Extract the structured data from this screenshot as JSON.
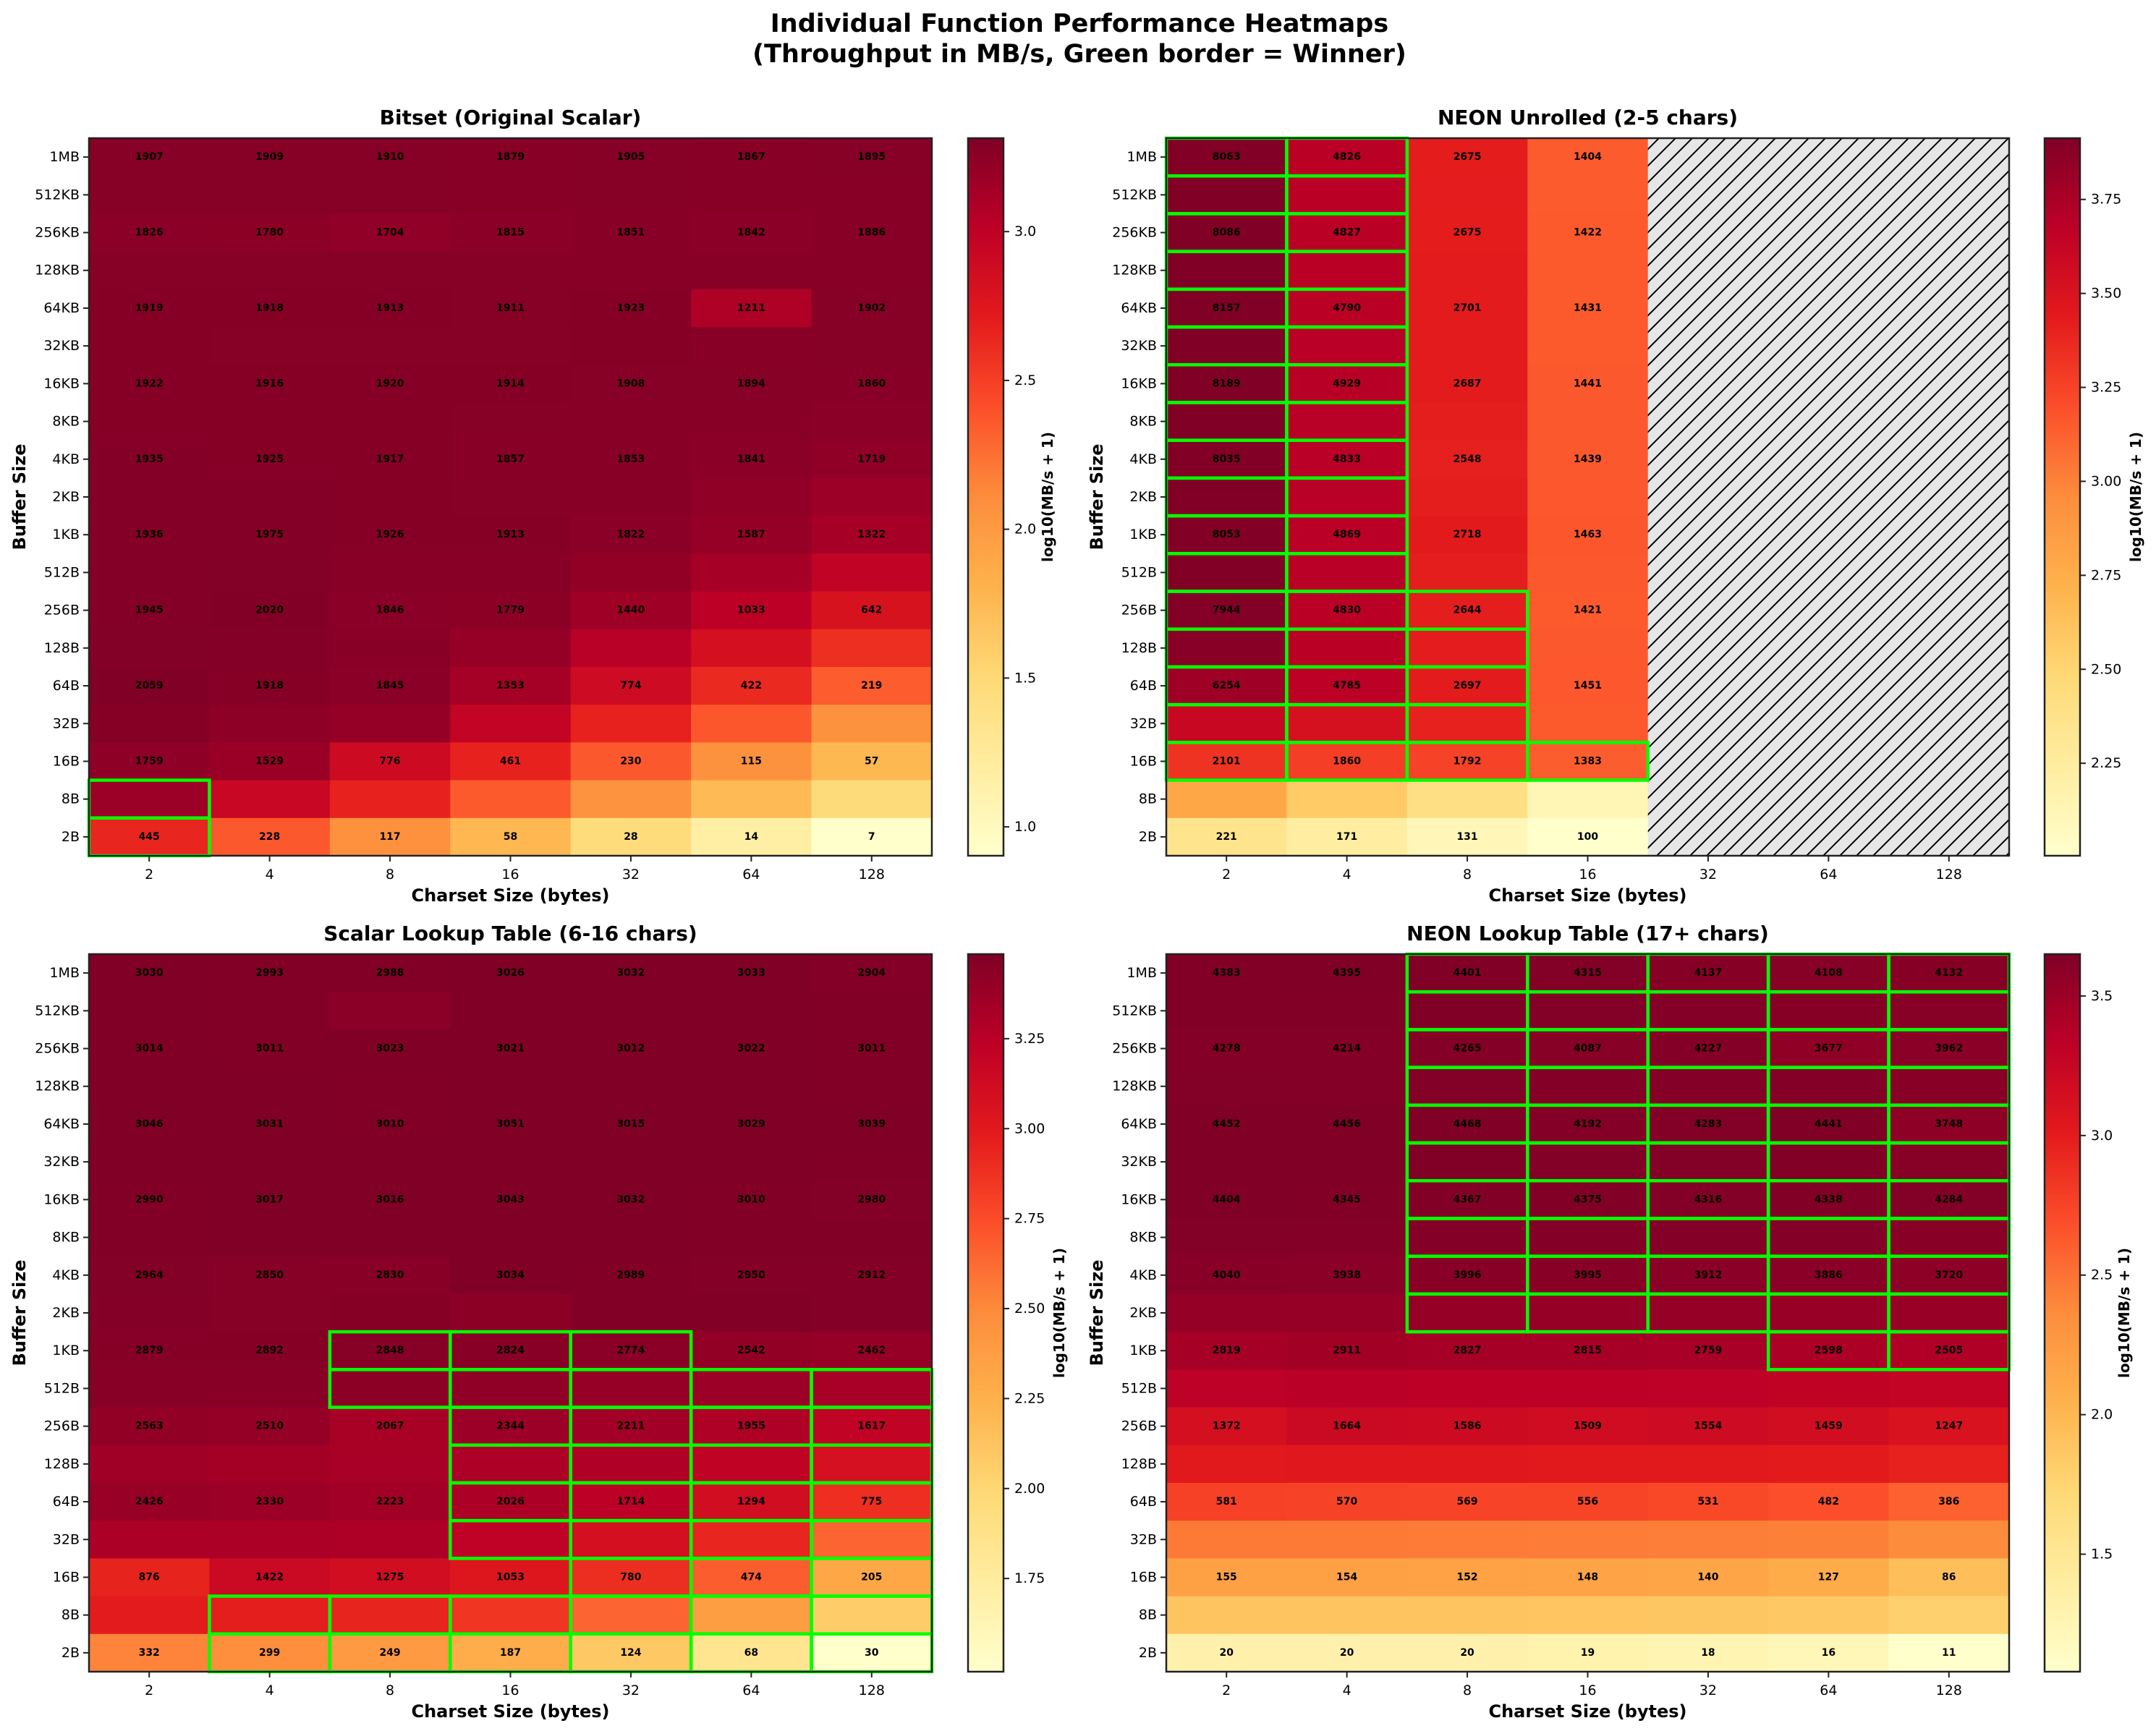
{
  "figure": {
    "title_line1": "Individual Function Performance Heatmaps",
    "title_line2": "(Throughput in MB/s, Green border = Winner)"
  },
  "colormap": {
    "name": "YlOrRd",
    "stops": [
      "#ffffcc",
      "#ffeda0",
      "#fed976",
      "#feb24c",
      "#fd8d3c",
      "#fc4e2a",
      "#e31a1c",
      "#bd0026",
      "#800026"
    ]
  },
  "styles": {
    "winner_border_color": "#00ff00",
    "missing_cell_fill": "#e6e6e6",
    "missing_hatch_color": "#000000"
  },
  "chart_data": [
    {
      "type": "heatmap",
      "title": "Bitset (Original Scalar)",
      "xlabel": "Charset Size (bytes)",
      "ylabel": "Buffer Size",
      "x_categories": [
        "2",
        "4",
        "8",
        "16",
        "32",
        "64",
        "128"
      ],
      "y_categories": [
        "1MB",
        "512KB",
        "256KB",
        "128KB",
        "64KB",
        "32KB",
        "16KB",
        "8KB",
        "4KB",
        "2KB",
        "1KB",
        "512B",
        "256B",
        "128B",
        "64B",
        "32B",
        "16B",
        "8B",
        "2B"
      ],
      "value_units": "MB/s",
      "colorbar": {
        "label": "log10(MB/s + 1)",
        "range": [
          0.903,
          3.314
        ],
        "ticks": [
          1.0,
          1.5,
          2.0,
          2.5,
          3.0
        ],
        "tick_labels": [
          "1.0",
          "1.5",
          "2.0",
          "2.5",
          "3.0"
        ]
      },
      "annotated_rows": [
        0,
        2,
        4,
        6,
        8,
        10,
        12,
        14,
        16,
        18
      ],
      "values": [
        [
          1907,
          1909,
          1910,
          1879,
          1905,
          1867,
          1895
        ],
        [
          1905,
          1910,
          1908,
          1890,
          1900,
          1880,
          1890
        ],
        [
          1826,
          1780,
          1704,
          1815,
          1851,
          1842,
          1886
        ],
        [
          1900,
          1905,
          1895,
          1900,
          1890,
          1870,
          1880
        ],
        [
          1919,
          1918,
          1913,
          1911,
          1923,
          1211,
          1902
        ],
        [
          1915,
          1910,
          1912,
          1905,
          1915,
          1890,
          1895
        ],
        [
          1922,
          1916,
          1920,
          1914,
          1908,
          1894,
          1860
        ],
        [
          1925,
          1920,
          1918,
          1900,
          1890,
          1880,
          1820
        ],
        [
          1935,
          1925,
          1917,
          1857,
          1853,
          1841,
          1719
        ],
        [
          1940,
          1950,
          1925,
          1900,
          1880,
          1720,
          1480
        ],
        [
          1936,
          1975,
          1926,
          1913,
          1822,
          1587,
          1322
        ],
        [
          1950,
          2000,
          1890,
          1850,
          1650,
          1320,
          960
        ],
        [
          1945,
          2020,
          1846,
          1779,
          1440,
          1033,
          642
        ],
        [
          2000,
          1960,
          1850,
          1580,
          1080,
          690,
          390
        ],
        [
          2059,
          1918,
          1845,
          1353,
          774,
          422,
          219
        ],
        [
          1930,
          1760,
          1620,
          920,
          470,
          235,
          115
        ],
        [
          1759,
          1529,
          776,
          461,
          230,
          115,
          57
        ],
        [
          1500,
          860,
          460,
          225,
          114,
          55,
          29
        ],
        [
          445,
          228,
          117,
          58,
          28,
          14,
          7
        ]
      ],
      "winner_mask": [
        "0000000",
        "0000000",
        "0000000",
        "0000000",
        "0000000",
        "0000000",
        "0000000",
        "0000000",
        "0000000",
        "0000000",
        "0000000",
        "0000000",
        "0000000",
        "0000000",
        "0000000",
        "0000000",
        "0000000",
        "1000000",
        "1000000"
      ]
    },
    {
      "type": "heatmap",
      "title": "NEON Unrolled (2-5 chars)",
      "xlabel": "Charset Size (bytes)",
      "ylabel": "Buffer Size",
      "x_categories": [
        "2",
        "4",
        "8",
        "16",
        "32",
        "64",
        "128"
      ],
      "y_categories": [
        "1MB",
        "512KB",
        "256KB",
        "128KB",
        "64KB",
        "32KB",
        "16KB",
        "8KB",
        "4KB",
        "2KB",
        "1KB",
        "512B",
        "256B",
        "128B",
        "64B",
        "32B",
        "16B",
        "8B",
        "2B"
      ],
      "value_units": "MB/s",
      "missing_cells_style": "hatched",
      "colorbar": {
        "label": "log10(MB/s + 1)",
        "range": [
          2.004,
          3.913
        ],
        "ticks": [
          2.25,
          2.5,
          2.75,
          3.0,
          3.25,
          3.5,
          3.75
        ],
        "tick_labels": [
          "2.25",
          "2.50",
          "2.75",
          "3.00",
          "3.25",
          "3.50",
          "3.75"
        ]
      },
      "annotated_rows": [
        0,
        2,
        4,
        6,
        8,
        10,
        12,
        14,
        16,
        18
      ],
      "values": [
        [
          8063,
          4826,
          2675,
          1404,
          null,
          null,
          null
        ],
        [
          8100,
          4820,
          2660,
          1410,
          null,
          null,
          null
        ],
        [
          8086,
          4827,
          2675,
          1422,
          null,
          null,
          null
        ],
        [
          8120,
          4810,
          2690,
          1425,
          null,
          null,
          null
        ],
        [
          8157,
          4790,
          2701,
          1431,
          null,
          null,
          null
        ],
        [
          8170,
          4860,
          2695,
          1435,
          null,
          null,
          null
        ],
        [
          8189,
          4929,
          2687,
          1441,
          null,
          null,
          null
        ],
        [
          8110,
          4880,
          2650,
          1440,
          null,
          null,
          null
        ],
        [
          8035,
          4833,
          2548,
          1439,
          null,
          null,
          null
        ],
        [
          8050,
          4850,
          2640,
          1450,
          null,
          null,
          null
        ],
        [
          8053,
          4869,
          2718,
          1463,
          null,
          null,
          null
        ],
        [
          8010,
          4840,
          2640,
          1440,
          null,
          null,
          null
        ],
        [
          7944,
          4830,
          2644,
          1421,
          null,
          null,
          null
        ],
        [
          7600,
          4810,
          2670,
          1436,
          null,
          null,
          null
        ],
        [
          6254,
          4785,
          2697,
          1451,
          null,
          null,
          null
        ],
        [
          4000,
          3300,
          2500,
          1430,
          null,
          null,
          null
        ],
        [
          2101,
          1860,
          1792,
          1383,
          null,
          null,
          null
        ],
        [
          620,
          370,
          256,
          136,
          null,
          null,
          null
        ],
        [
          221,
          171,
          131,
          100,
          null,
          null,
          null
        ]
      ],
      "winner_mask": [
        "1100000",
        "1100000",
        "1100000",
        "1100000",
        "1100000",
        "1100000",
        "1100000",
        "1100000",
        "1100000",
        "1100000",
        "1100000",
        "1100000",
        "1110000",
        "1110000",
        "1110000",
        "1110000",
        "1111000",
        "0000000",
        "0000000"
      ]
    },
    {
      "type": "heatmap",
      "title": "Scalar Lookup Table (6-16 chars)",
      "xlabel": "Charset Size (bytes)",
      "ylabel": "Buffer Size",
      "x_categories": [
        "2",
        "4",
        "8",
        "16",
        "32",
        "64",
        "128"
      ],
      "y_categories": [
        "1MB",
        "512KB",
        "256KB",
        "128KB",
        "64KB",
        "32KB",
        "16KB",
        "8KB",
        "4KB",
        "2KB",
        "1KB",
        "512B",
        "256B",
        "128B",
        "64B",
        "32B",
        "16B",
        "8B",
        "2B"
      ],
      "value_units": "MB/s",
      "colorbar": {
        "label": "log10(MB/s + 1)",
        "range": [
          1.491,
          3.485
        ],
        "ticks": [
          1.75,
          2.0,
          2.25,
          2.5,
          2.75,
          3.0,
          3.25
        ],
        "tick_labels": [
          "1.75",
          "2.00",
          "2.25",
          "2.50",
          "2.75",
          "3.00",
          "3.25"
        ]
      },
      "annotated_rows": [
        0,
        2,
        4,
        6,
        8,
        10,
        12,
        14,
        16,
        18
      ],
      "values": [
        [
          3030,
          2993,
          2988,
          3026,
          3032,
          3033,
          2904
        ],
        [
          3020,
          3010,
          2750,
          3030,
          3025,
          3015,
          2990
        ],
        [
          3014,
          3011,
          3023,
          3021,
          3012,
          3022,
          3011
        ],
        [
          3020,
          3015,
          3010,
          3030,
          3020,
          3025,
          3010
        ],
        [
          3046,
          3031,
          3010,
          3051,
          3015,
          3029,
          3039
        ],
        [
          3030,
          3025,
          3020,
          3040,
          3030,
          3020,
          3010
        ],
        [
          2990,
          3017,
          3016,
          3043,
          3032,
          3010,
          2980
        ],
        [
          3010,
          3020,
          3015,
          3030,
          3020,
          3010,
          2990
        ],
        [
          2964,
          2850,
          2830,
          3034,
          2989,
          2950,
          2912
        ],
        [
          2900,
          2850,
          2880,
          2700,
          3000,
          2990,
          2950
        ],
        [
          2879,
          2892,
          2848,
          2824,
          2774,
          2542,
          2462
        ],
        [
          2820,
          2800,
          2720,
          2620,
          2480,
          2350,
          2100
        ],
        [
          2563,
          2510,
          2067,
          2344,
          2211,
          1955,
          1617
        ],
        [
          2250,
          2170,
          2090,
          1980,
          1930,
          1650,
          1200
        ],
        [
          2426,
          2330,
          2223,
          2026,
          1714,
          1294,
          775
        ],
        [
          2000,
          2020,
          1980,
          1660,
          1230,
          860,
          440
        ],
        [
          876,
          1422,
          1275,
          1053,
          780,
          474,
          205
        ],
        [
          960,
          940,
          870,
          720,
          440,
          235,
          117
        ],
        [
          332,
          299,
          249,
          187,
          124,
          68,
          30
        ]
      ],
      "winner_mask": [
        "0000000",
        "0000000",
        "0000000",
        "0000000",
        "0000000",
        "0000000",
        "0000000",
        "0000000",
        "0000000",
        "0000000",
        "0011100",
        "0011111",
        "0001111",
        "0001111",
        "0001111",
        "0001111",
        "0000111",
        "0111111",
        "0111111"
      ]
    },
    {
      "type": "heatmap",
      "title": "NEON Lookup Table (17+ chars)",
      "xlabel": "Charset Size (bytes)",
      "ylabel": "Buffer Size",
      "x_categories": [
        "2",
        "4",
        "8",
        "16",
        "32",
        "64",
        "128"
      ],
      "y_categories": [
        "1MB",
        "512KB",
        "256KB",
        "128KB",
        "64KB",
        "32KB",
        "16KB",
        "8KB",
        "4KB",
        "2KB",
        "1KB",
        "512B",
        "256B",
        "128B",
        "64B",
        "32B",
        "16B",
        "8B",
        "2B"
      ],
      "value_units": "MB/s",
      "colorbar": {
        "label": "log10(MB/s + 1)",
        "range": [
          1.079,
          3.65
        ],
        "ticks": [
          1.5,
          2.0,
          2.5,
          3.0,
          3.5
        ],
        "tick_labels": [
          "1.5",
          "2.0",
          "2.5",
          "3.0",
          "3.5"
        ]
      },
      "annotated_rows": [
        0,
        2,
        4,
        6,
        8,
        10,
        12,
        14,
        16,
        18
      ],
      "values": [
        [
          4383,
          4395,
          4401,
          4315,
          4137,
          4108,
          4132
        ],
        [
          4350,
          4380,
          4390,
          4300,
          4250,
          4150,
          4100
        ],
        [
          4278,
          4214,
          4265,
          4087,
          4227,
          3677,
          3962
        ],
        [
          4320,
          4280,
          4330,
          4250,
          4260,
          4200,
          4050
        ],
        [
          4452,
          4456,
          4468,
          4192,
          4283,
          4441,
          3748
        ],
        [
          4420,
          4400,
          4420,
          4300,
          4310,
          4350,
          4100
        ],
        [
          4404,
          4345,
          4367,
          4375,
          4316,
          4338,
          4284
        ],
        [
          4300,
          4250,
          4280,
          4250,
          4200,
          4180,
          4050
        ],
        [
          4040,
          3938,
          3996,
          3995,
          3912,
          3886,
          3720
        ],
        [
          3450,
          3420,
          3430,
          3400,
          3380,
          3350,
          3300
        ],
        [
          2819,
          2911,
          2827,
          2815,
          2759,
          2598,
          2505
        ],
        [
          2100,
          2200,
          2150,
          2130,
          2100,
          2000,
          1900
        ],
        [
          1372,
          1664,
          1586,
          1509,
          1554,
          1459,
          1247
        ],
        [
          1050,
          1080,
          1070,
          1050,
          1060,
          1020,
          920
        ],
        [
          581,
          570,
          569,
          556,
          531,
          482,
          386
        ],
        [
          290,
          290,
          285,
          280,
          275,
          270,
          230
        ],
        [
          155,
          154,
          152,
          148,
          140,
          127,
          86
        ],
        [
          78,
          78,
          77,
          76,
          74,
          71,
          60
        ],
        [
          20,
          20,
          20,
          19,
          18,
          16,
          11
        ]
      ],
      "winner_mask": [
        "0011111",
        "0011111",
        "0011111",
        "0011111",
        "0011111",
        "0011111",
        "0011111",
        "0011111",
        "0011111",
        "0011111",
        "0000011",
        "0000000",
        "0000000",
        "0000000",
        "0000000",
        "0000000",
        "0000000",
        "0000000",
        "0000000"
      ]
    }
  ]
}
